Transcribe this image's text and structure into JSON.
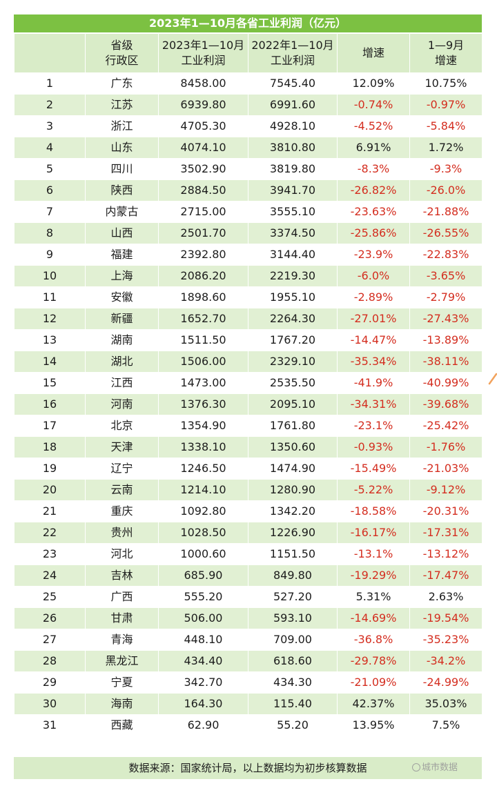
{
  "title": "2023年1—10月各省工业利润（亿元）",
  "headers": {
    "rank": "",
    "province": [
      "省级",
      "行政区"
    ],
    "profit_2023": [
      "2023年1—10月",
      "工业利润"
    ],
    "profit_2022": [
      "2022年1—10月",
      "工业利润"
    ],
    "growth": [
      "增速"
    ],
    "growth_jan_sep": [
      "1—9月",
      "增速"
    ]
  },
  "rows": [
    {
      "rank": "1",
      "province": "广东",
      "p2023": "8458.00",
      "p2022": "7545.40",
      "growth": "12.09%",
      "growth_9m": "10.75%"
    },
    {
      "rank": "2",
      "province": "江苏",
      "p2023": "6939.80",
      "p2022": "6991.60",
      "growth": "-0.74%",
      "growth_9m": "-0.97%"
    },
    {
      "rank": "3",
      "province": "浙江",
      "p2023": "4705.30",
      "p2022": "4928.10",
      "growth": "-4.52%",
      "growth_9m": "-5.84%"
    },
    {
      "rank": "4",
      "province": "山东",
      "p2023": "4074.10",
      "p2022": "3810.80",
      "growth": "6.91%",
      "growth_9m": "1.72%"
    },
    {
      "rank": "5",
      "province": "四川",
      "p2023": "3502.90",
      "p2022": "3819.80",
      "growth": "-8.3%",
      "growth_9m": "-9.3%"
    },
    {
      "rank": "6",
      "province": "陕西",
      "p2023": "2884.50",
      "p2022": "3941.70",
      "growth": "-26.82%",
      "growth_9m": "-26.0%"
    },
    {
      "rank": "7",
      "province": "内蒙古",
      "p2023": "2715.00",
      "p2022": "3555.10",
      "growth": "-23.63%",
      "growth_9m": "-21.88%"
    },
    {
      "rank": "8",
      "province": "山西",
      "p2023": "2501.70",
      "p2022": "3374.50",
      "growth": "-25.86%",
      "growth_9m": "-26.55%"
    },
    {
      "rank": "9",
      "province": "福建",
      "p2023": "2392.80",
      "p2022": "3144.40",
      "growth": "-23.9%",
      "growth_9m": "-22.83%"
    },
    {
      "rank": "10",
      "province": "上海",
      "p2023": "2086.20",
      "p2022": "2219.30",
      "growth": "-6.0%",
      "growth_9m": "-3.65%"
    },
    {
      "rank": "11",
      "province": "安徽",
      "p2023": "1898.60",
      "p2022": "1955.10",
      "growth": "-2.89%",
      "growth_9m": "-2.79%"
    },
    {
      "rank": "12",
      "province": "新疆",
      "p2023": "1652.70",
      "p2022": "2264.30",
      "growth": "-27.01%",
      "growth_9m": "-27.43%"
    },
    {
      "rank": "13",
      "province": "湖南",
      "p2023": "1511.50",
      "p2022": "1767.20",
      "growth": "-14.47%",
      "growth_9m": "-13.89%"
    },
    {
      "rank": "14",
      "province": "湖北",
      "p2023": "1506.00",
      "p2022": "2329.10",
      "growth": "-35.34%",
      "growth_9m": "-38.11%"
    },
    {
      "rank": "15",
      "province": "江西",
      "p2023": "1473.00",
      "p2022": "2535.50",
      "growth": "-41.9%",
      "growth_9m": "-40.99%"
    },
    {
      "rank": "16",
      "province": "河南",
      "p2023": "1376.30",
      "p2022": "2095.10",
      "growth": "-34.31%",
      "growth_9m": "-39.68%"
    },
    {
      "rank": "17",
      "province": "北京",
      "p2023": "1354.90",
      "p2022": "1761.80",
      "growth": "-23.1%",
      "growth_9m": "-25.42%"
    },
    {
      "rank": "18",
      "province": "天津",
      "p2023": "1338.10",
      "p2022": "1350.60",
      "growth": "-0.93%",
      "growth_9m": "-1.76%"
    },
    {
      "rank": "19",
      "province": "辽宁",
      "p2023": "1246.50",
      "p2022": "1474.90",
      "growth": "-15.49%",
      "growth_9m": "-21.03%"
    },
    {
      "rank": "20",
      "province": "云南",
      "p2023": "1214.10",
      "p2022": "1280.90",
      "growth": "-5.22%",
      "growth_9m": "-9.12%"
    },
    {
      "rank": "21",
      "province": "重庆",
      "p2023": "1092.80",
      "p2022": "1342.20",
      "growth": "-18.58%",
      "growth_9m": "-20.31%"
    },
    {
      "rank": "22",
      "province": "贵州",
      "p2023": "1028.50",
      "p2022": "1226.90",
      "growth": "-16.17%",
      "growth_9m": "-17.31%"
    },
    {
      "rank": "23",
      "province": "河北",
      "p2023": "1000.60",
      "p2022": "1151.50",
      "growth": "-13.1%",
      "growth_9m": "-13.12%"
    },
    {
      "rank": "24",
      "province": "吉林",
      "p2023": "685.90",
      "p2022": "849.80",
      "growth": "-19.29%",
      "growth_9m": "-17.47%"
    },
    {
      "rank": "25",
      "province": "广西",
      "p2023": "555.20",
      "p2022": "527.20",
      "growth": "5.31%",
      "growth_9m": "2.63%"
    },
    {
      "rank": "26",
      "province": "甘肃",
      "p2023": "506.00",
      "p2022": "593.10",
      "growth": "-14.69%",
      "growth_9m": "-19.54%"
    },
    {
      "rank": "27",
      "province": "青海",
      "p2023": "448.10",
      "p2022": "709.00",
      "growth": "-36.8%",
      "growth_9m": "-35.23%"
    },
    {
      "rank": "28",
      "province": "黑龙江",
      "p2023": "434.40",
      "p2022": "618.60",
      "growth": "-29.78%",
      "growth_9m": "-34.2%"
    },
    {
      "rank": "29",
      "province": "宁夏",
      "p2023": "342.70",
      "p2022": "434.30",
      "growth": "-21.09%",
      "growth_9m": "-24.99%"
    },
    {
      "rank": "30",
      "province": "海南",
      "p2023": "164.30",
      "p2022": "115.40",
      "growth": "42.37%",
      "growth_9m": "35.03%"
    },
    {
      "rank": "31",
      "province": "西藏",
      "p2023": "62.90",
      "p2022": "55.20",
      "growth": "13.95%",
      "growth_9m": "7.5%"
    }
  ],
  "footer": "数据来源：国家统计局，以上数据均为初步核算数据",
  "watermark": "城市数据",
  "colors": {
    "header_green": "#7cc142",
    "light_green": "#d9ecc8",
    "row_alt": "#e1f0d3",
    "negative_red": "#d42d1f"
  }
}
